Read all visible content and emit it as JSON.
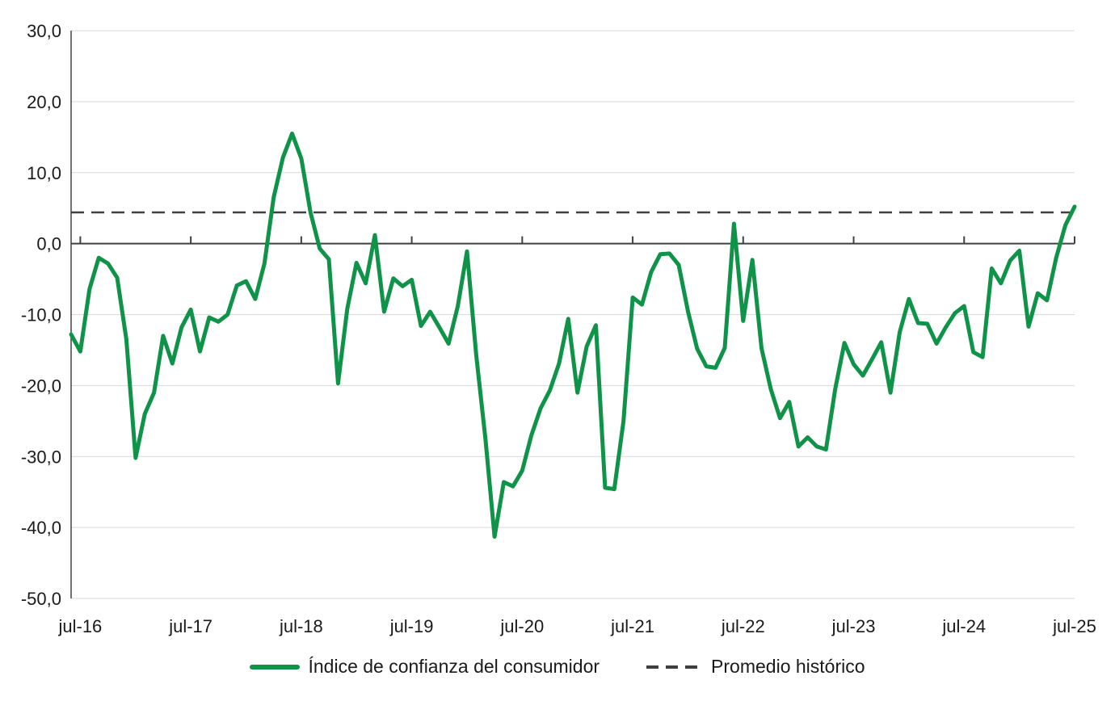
{
  "chart_data": {
    "type": "line",
    "title": "",
    "grid": "horizontal",
    "legend_position": "bottom",
    "y_axis": {
      "max": 30,
      "min": -50,
      "step": 10,
      "tick_labels": [
        "30,0",
        "20,0",
        "10,0",
        "0,0",
        "-10,0",
        "-20,0",
        "-30,0",
        "-40,0",
        "-50,0"
      ]
    },
    "x_axis": {
      "tick_labels": [
        "jul-16",
        "jul-17",
        "jul-18",
        "jul-19",
        "jul-20",
        "jul-21",
        "jul-22",
        "jul-23",
        "jul-24",
        "jul-25"
      ],
      "first_tick_index": 1,
      "tick_interval": 12
    },
    "series": [
      {
        "name": "Índice de confianza del consumidor",
        "color": "#0E9348",
        "months": [
          "jun-16",
          "jul-16",
          "ago-16",
          "sep-16",
          "oct-16",
          "nov-16",
          "dic-16",
          "ene-17",
          "feb-17",
          "mar-17",
          "abr-17",
          "may-17",
          "jun-17",
          "jul-17",
          "ago-17",
          "sep-17",
          "oct-17",
          "nov-17",
          "dic-17",
          "ene-18",
          "feb-18",
          "mar-18",
          "abr-18",
          "may-18",
          "jun-18",
          "jul-18",
          "ago-18",
          "sep-18",
          "oct-18",
          "nov-18",
          "dic-18",
          "ene-19",
          "feb-19",
          "mar-19",
          "abr-19",
          "may-19",
          "jun-19",
          "jul-19",
          "ago-19",
          "sep-19",
          "oct-19",
          "nov-19",
          "dic-19",
          "ene-20",
          "feb-20",
          "mar-20",
          "abr-20",
          "may-20",
          "jun-20",
          "jul-20",
          "ago-20",
          "sep-20",
          "oct-20",
          "nov-20",
          "dic-20",
          "ene-21",
          "feb-21",
          "mar-21",
          "abr-21",
          "may-21",
          "jun-21",
          "jul-21",
          "ago-21",
          "sep-21",
          "oct-21",
          "nov-21",
          "dic-21",
          "ene-22",
          "feb-22",
          "mar-22",
          "abr-22",
          "may-22",
          "jun-22",
          "jul-22",
          "ago-22",
          "sep-22",
          "oct-22",
          "nov-22",
          "dic-22",
          "ene-23",
          "feb-23",
          "mar-23",
          "abr-23",
          "may-23",
          "jun-23",
          "jul-23",
          "ago-23",
          "sep-23",
          "oct-23",
          "nov-23",
          "dic-23",
          "ene-24",
          "feb-24",
          "mar-24",
          "abr-24",
          "may-24",
          "jun-24",
          "jul-24",
          "ago-24",
          "sep-24",
          "oct-24",
          "nov-24",
          "dic-24",
          "ene-25",
          "feb-25",
          "mar-25",
          "abr-25",
          "may-25",
          "jun-25",
          "jul-25"
        ],
        "values": [
          -12.8,
          -15.2,
          -6.4,
          -2.0,
          -2.8,
          -4.8,
          -13.5,
          -30.2,
          -24.0,
          -21.0,
          -13.0,
          -16.9,
          -11.8,
          -9.3,
          -15.2,
          -10.4,
          -11.0,
          -10.0,
          -5.9,
          -5.3,
          -7.8,
          -2.8,
          6.5,
          12.1,
          15.5,
          12.0,
          4.4,
          -0.7,
          -2.2,
          -19.7,
          -9.2,
          -2.7,
          -5.6,
          1.2,
          -9.6,
          -4.9,
          -6.0,
          -5.1,
          -11.6,
          -9.6,
          -11.8,
          -14.1,
          -8.8,
          -1.1,
          -15.7,
          -27.5,
          -41.3,
          -33.6,
          -34.2,
          -32.0,
          -27.0,
          -23.2,
          -20.7,
          -16.9,
          -10.6,
          -21.0,
          -14.5,
          -11.5,
          -34.4,
          -34.6,
          -25.0,
          -7.6,
          -8.6,
          -4.0,
          -1.5,
          -1.4,
          -3.0,
          -9.5,
          -14.8,
          -17.3,
          -17.5,
          -14.7,
          2.8,
          -10.9,
          -2.3,
          -14.8,
          -20.5,
          -24.6,
          -22.3,
          -28.6,
          -27.3,
          -28.6,
          -29.0,
          -20.5,
          -14.0,
          -17.0,
          -18.6,
          -16.3,
          -13.9,
          -21.0,
          -12.5,
          -7.8,
          -11.2,
          -11.3,
          -14.1,
          -11.8,
          -9.8,
          -8.8,
          -15.3,
          -16.0,
          -3.5,
          -5.6,
          -2.4,
          -1.0,
          -11.7,
          -7.0,
          -8.0,
          -2.0,
          2.6,
          5.2
        ]
      },
      {
        "name": "Promedio histórico",
        "color": "#3F3F3F",
        "style": "dashed",
        "value": 4.4
      }
    ]
  },
  "legend": {
    "items": [
      {
        "label": "Índice de confianza del consumidor"
      },
      {
        "label": "Promedio histórico"
      }
    ]
  },
  "colors": {
    "series_green": "#0E9348",
    "dashed_dark": "#3F3F3F",
    "gridline": "#D9D9D9",
    "axis": "#404040",
    "text": "#1A1A1A",
    "background": "#FFFFFF"
  }
}
